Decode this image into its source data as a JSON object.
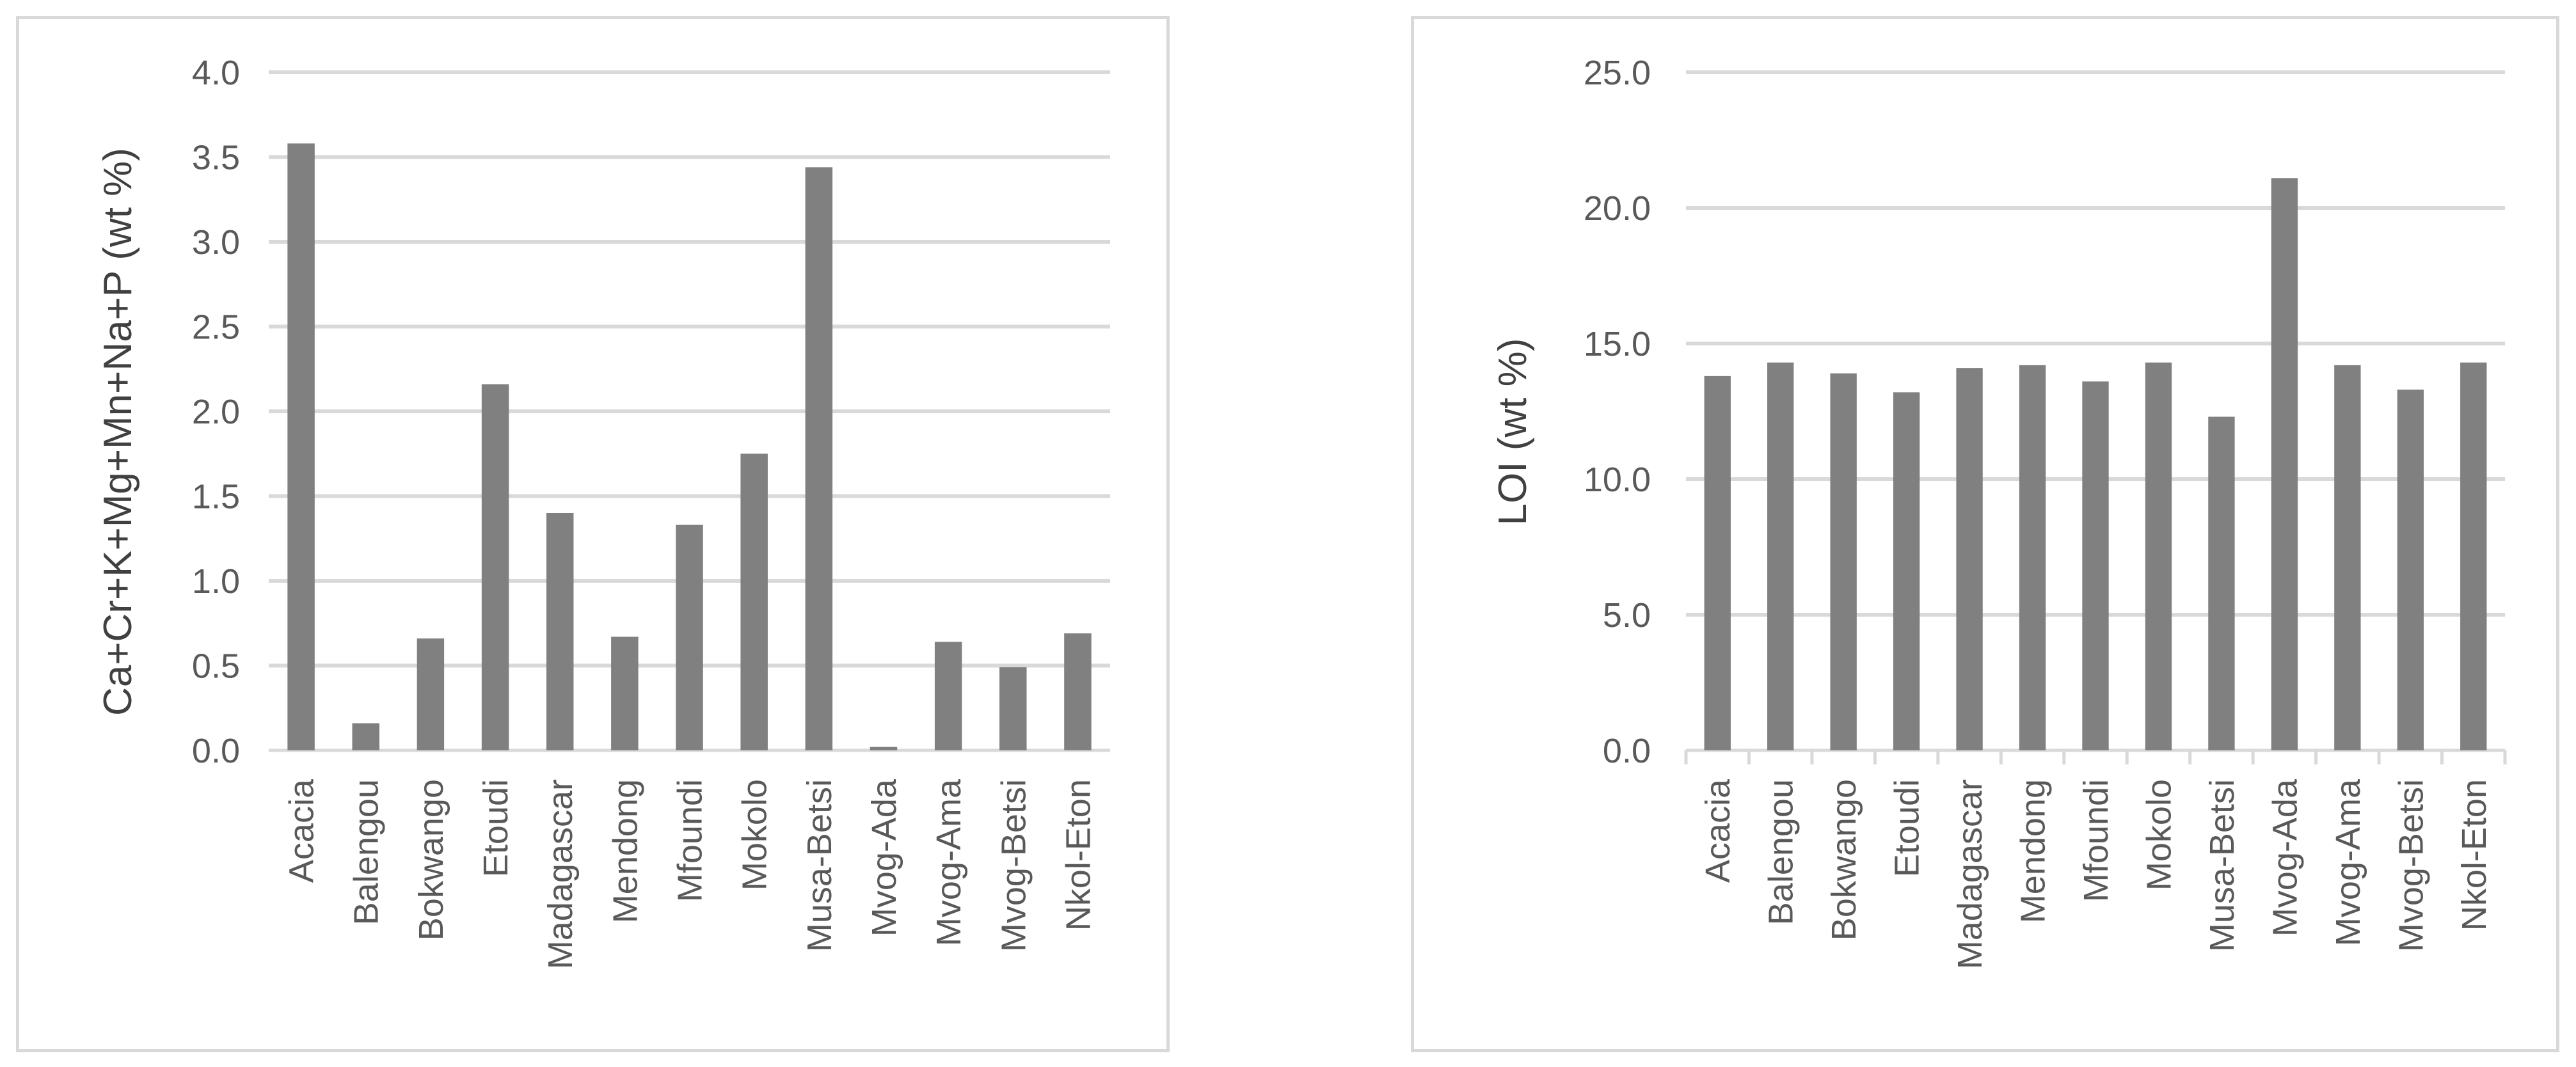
{
  "chart_data": [
    {
      "type": "bar",
      "title": "",
      "xlabel": "",
      "ylabel": "Ca+Cr+K+Mg+Mn+Na+P (wt %)",
      "ylim": [
        0,
        4.0
      ],
      "yticks": [
        "0.0",
        "0.5",
        "1.0",
        "1.5",
        "2.0",
        "2.5",
        "3.0",
        "3.5",
        "4.0"
      ],
      "grid": true,
      "color": "#808080",
      "categories": [
        "Acacia",
        "Balengou",
        "Bokwango",
        "Etoudi",
        "Madagascar",
        "Mendong",
        "Mfoundi",
        "Mokolo",
        "Musa-Betsi",
        "Mvog-Ada",
        "Mvog-Ama",
        "Mvog-Betsi",
        "Nkol-Eton"
      ],
      "values": [
        3.58,
        0.16,
        0.66,
        2.16,
        1.4,
        0.67,
        1.33,
        1.75,
        3.44,
        0.02,
        0.64,
        0.49,
        0.69
      ]
    },
    {
      "type": "bar",
      "title": "",
      "xlabel": "",
      "ylabel": "LOI (wt %)",
      "ylim": [
        0,
        25.0
      ],
      "yticks": [
        "0.0",
        "5.0",
        "10.0",
        "15.0",
        "20.0",
        "25.0"
      ],
      "grid": true,
      "color": "#808080",
      "categories": [
        "Acacia",
        "Balengou",
        "Bokwango",
        "Etoudi",
        "Madagascar",
        "Mendong",
        "Mfoundi",
        "Mokolo",
        "Musa-Betsi",
        "Mvog-Ada",
        "Mvog-Ama",
        "Mvog-Betsi",
        "Nkol-Eton"
      ],
      "values": [
        13.8,
        14.3,
        13.9,
        13.2,
        14.1,
        14.2,
        13.6,
        14.3,
        12.3,
        21.1,
        14.2,
        13.3,
        14.3
      ]
    }
  ]
}
